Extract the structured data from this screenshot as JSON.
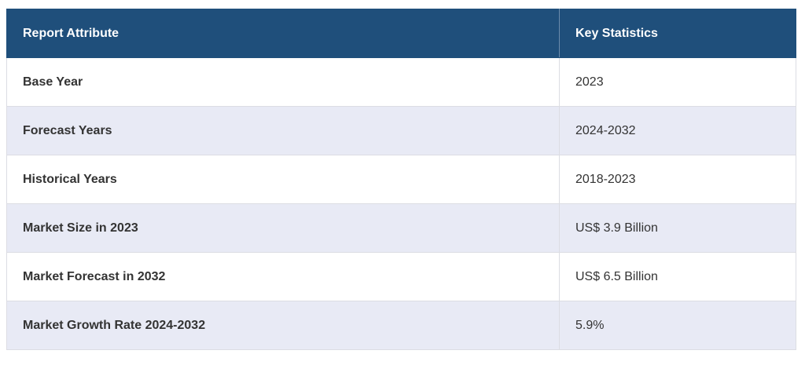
{
  "header": {
    "columns": [
      "Report Attribute",
      "Key Statistics"
    ]
  },
  "table": {
    "rows": [
      [
        "Base Year",
        "2023"
      ],
      [
        "Forecast Years",
        "2024-2032"
      ],
      [
        "Historical Years",
        "2018-2023"
      ],
      [
        "Market Size in 2023",
        "US$ 3.9 Billion"
      ],
      [
        "Market Forecast in 2032",
        "US$ 6.5 Billion"
      ],
      [
        "Market Growth Rate 2024-2032",
        "5.9%"
      ]
    ]
  }
}
